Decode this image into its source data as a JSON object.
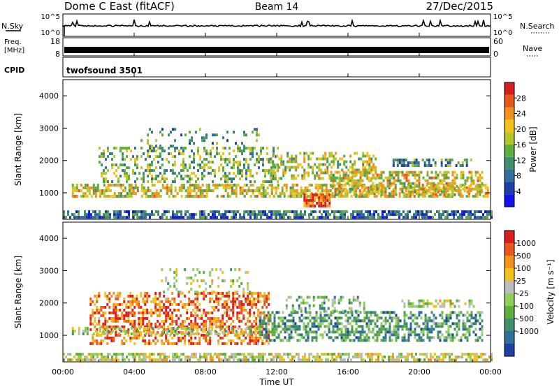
{
  "header": {
    "station": "Dome C East (fitACF)",
    "beam": "Beam 14",
    "date": "27/Dec/2015"
  },
  "nsky_panel": {
    "left_label": "N.Sky",
    "right_label": "N.Search",
    "left_ticks": [
      "10^5",
      "10^0"
    ],
    "right_ticks": [
      "10^5",
      "10^0"
    ]
  },
  "freq_panel": {
    "left_label_line1": "Freq.",
    "left_label_line2": "[MHz]",
    "right_label": "Nave",
    "left_ticks": [
      "18",
      "8"
    ],
    "right_ticks": [
      "60",
      "0"
    ]
  },
  "cpid_panel": {
    "label": "CPID",
    "program": "twofsound 3501"
  },
  "chart_data": [
    {
      "type": "heatmap",
      "name": "power",
      "ylabel": "Slant Range [km]",
      "ylim": [
        180,
        4500
      ],
      "yticks": [
        "1000",
        "2000",
        "3000",
        "4000"
      ],
      "ytick_values": [
        1000,
        2000,
        3000,
        4000
      ],
      "colorbar_label": "Power [dB]",
      "colorbar_ticks": [
        "4",
        "8",
        "12",
        "16",
        "20",
        "24",
        "28"
      ],
      "colorbar_range": [
        0,
        32
      ],
      "colorbar_colors": [
        "#1212f0",
        "#1f3fa8",
        "#2f6f9a",
        "#3f8f6a",
        "#5fae3f",
        "#b7c42a",
        "#f2c21c",
        "#f2921c",
        "#e8581a",
        "#d61e1e"
      ],
      "bands": [
        {
          "t0": 0.0,
          "t1": 24.0,
          "r0": 200,
          "r1": 380,
          "density": 0.7,
          "level": 0.25
        },
        {
          "t0": 0.5,
          "t1": 23.8,
          "r0": 850,
          "r1": 1250,
          "density": 0.6,
          "level": 0.6
        },
        {
          "t0": 2.0,
          "t1": 12.0,
          "r0": 1300,
          "r1": 2400,
          "density": 0.35,
          "level": 0.45
        },
        {
          "t0": 4.0,
          "t1": 11.0,
          "r0": 2400,
          "r1": 3000,
          "density": 0.12,
          "level": 0.35
        },
        {
          "t0": 11.5,
          "t1": 17.5,
          "r0": 1400,
          "r1": 2200,
          "density": 0.45,
          "level": 0.55
        },
        {
          "t0": 13.5,
          "t1": 15.0,
          "r0": 550,
          "r1": 900,
          "density": 0.8,
          "level": 0.85
        },
        {
          "t0": 15.0,
          "t1": 23.5,
          "r0": 900,
          "r1": 1600,
          "density": 0.55,
          "level": 0.6
        },
        {
          "t0": 18.5,
          "t1": 23.0,
          "r0": 1800,
          "r1": 2000,
          "density": 0.5,
          "level": 0.35
        }
      ]
    },
    {
      "type": "heatmap",
      "name": "velocity",
      "ylabel": "Slant Range [km]",
      "ylim": [
        180,
        4500
      ],
      "yticks": [
        "1000",
        "2000",
        "3000",
        "4000"
      ],
      "ytick_values": [
        1000,
        2000,
        3000,
        4000
      ],
      "colorbar_label": "Velocity [m s⁻¹]",
      "colorbar_ticks": [
        "1000",
        "500",
        "100",
        "25",
        "-25",
        "-100",
        "-500",
        "-1000"
      ],
      "colorbar_colors": [
        "#1f3fa8",
        "#2f6f9a",
        "#3f8f6a",
        "#5fae3f",
        "#8fd05a",
        "#bdbdbd",
        "#f2c21c",
        "#f2921c",
        "#e8581a",
        "#d61e1e"
      ],
      "xticks": [
        "00:00",
        "04:00",
        "08:00",
        "12:00",
        "16:00",
        "20:00",
        "00:00"
      ],
      "xtick_values": [
        0,
        4,
        8,
        12,
        16,
        20,
        24
      ],
      "xlabel": "Time UT",
      "bands": [
        {
          "t0": 0.0,
          "t1": 24.0,
          "r0": 200,
          "r1": 380,
          "density": 0.65,
          "level": 0.55
        },
        {
          "t0": 1.5,
          "t1": 11.5,
          "r0": 700,
          "r1": 2300,
          "density": 0.5,
          "level": 0.82
        },
        {
          "t0": 0.5,
          "t1": 11.0,
          "r0": 1000,
          "r1": 1200,
          "density": 0.5,
          "level": 0.5
        },
        {
          "t0": 5.5,
          "t1": 10.5,
          "r0": 2300,
          "r1": 3000,
          "density": 0.2,
          "level": 0.5
        },
        {
          "t0": 11.0,
          "t1": 23.5,
          "r0": 800,
          "r1": 1700,
          "density": 0.55,
          "level": 0.3
        },
        {
          "t0": 12.5,
          "t1": 17.0,
          "r0": 1700,
          "r1": 2200,
          "density": 0.35,
          "level": 0.35
        },
        {
          "t0": 19.0,
          "t1": 23.0,
          "r0": 1850,
          "r1": 2050,
          "density": 0.5,
          "level": 0.5
        }
      ]
    }
  ]
}
